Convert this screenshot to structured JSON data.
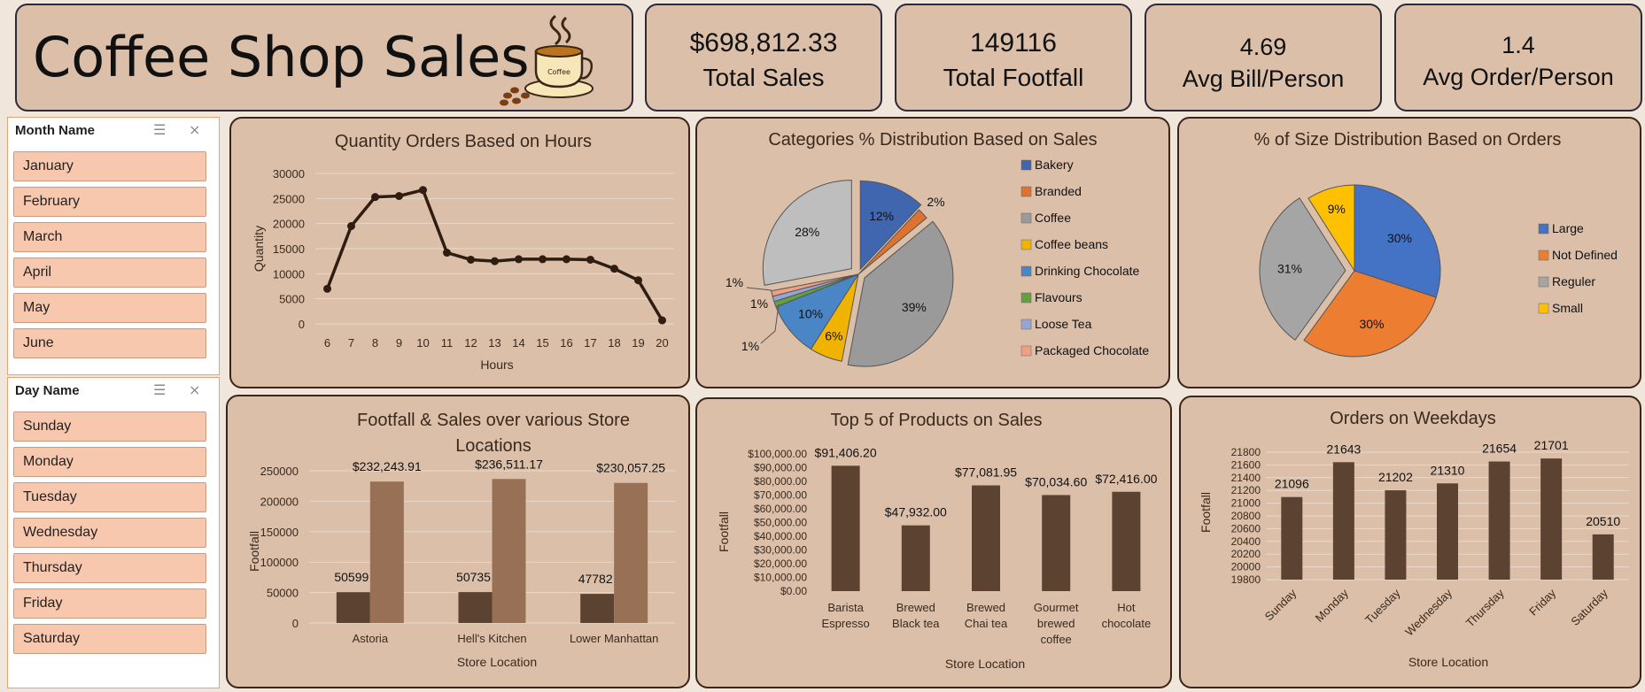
{
  "header": {
    "title": "Coffee Shop Sales"
  },
  "kpis": [
    {
      "value": "$698,812.33",
      "label": "Total Sales"
    },
    {
      "value": "149116",
      "label": "Total Footfall"
    },
    {
      "value": "4.69",
      "label": "Avg Bill/Person"
    },
    {
      "value": "1.4",
      "label": "Avg Order/Person"
    }
  ],
  "slicers": {
    "month": {
      "title": "Month Name",
      "items": [
        "January",
        "February",
        "March",
        "April",
        "May",
        "June"
      ]
    },
    "day": {
      "title": "Day Name",
      "items": [
        "Sunday",
        "Monday",
        "Tuesday",
        "Wednesday",
        "Thursday",
        "Friday",
        "Saturday"
      ]
    }
  },
  "colors": {
    "dark_brown": "#5c4331",
    "light_brown": "#977056",
    "line": "#2e1d10",
    "panel": "#dbbfa9"
  },
  "chart_data": [
    {
      "id": "hours",
      "type": "line",
      "title": "Quantity Orders Based on Hours",
      "xlabel": "Hours",
      "ylabel": "Quantity",
      "ylim": [
        0,
        30000
      ],
      "yticks": [
        "0",
        "5000",
        "10000",
        "15000",
        "20000",
        "25000",
        "30000"
      ],
      "x": [
        "6",
        "7",
        "8",
        "9",
        "10",
        "11",
        "12",
        "13",
        "14",
        "15",
        "16",
        "17",
        "18",
        "19",
        "20"
      ],
      "values": [
        7000,
        19500,
        25300,
        25500,
        26700,
        14200,
        12800,
        12500,
        12900,
        12900,
        12900,
        12800,
        11000,
        8700,
        700
      ]
    },
    {
      "id": "categories",
      "type": "pie",
      "title": "Categories % Distribution Based on Sales",
      "legend": "right",
      "slices": [
        {
          "label": "Bakery",
          "value": 12,
          "text": "12%",
          "color": "#4066b0"
        },
        {
          "label": "Branded",
          "value": 2,
          "text": "2%",
          "color": "#e07230"
        },
        {
          "label": "Coffee",
          "value": 39,
          "text": "39%",
          "color": "#9a9a9a"
        },
        {
          "label": "Coffee beans",
          "value": 6,
          "text": "6%",
          "color": "#f0b400"
        },
        {
          "label": "Drinking Chocolate",
          "value": 10,
          "text": "10%",
          "color": "#4a86c6"
        },
        {
          "label": "Flavours",
          "value": 1,
          "text": "1%",
          "color": "#62a040"
        },
        {
          "label": "Loose Tea",
          "value": 1,
          "text": "1%",
          "color": "#94a6d8"
        },
        {
          "label": "Packaged Chocolate",
          "value": 1,
          "text": "1%",
          "color": "#f0a080"
        },
        {
          "label": "",
          "value": 28,
          "text": "28%",
          "color": "#bebebe"
        }
      ]
    },
    {
      "id": "size",
      "type": "pie",
      "title": "% of Size Distribution Based on Orders",
      "legend": "right",
      "slices": [
        {
          "label": "Large",
          "value": 30,
          "text": "30%",
          "color": "#4472c4"
        },
        {
          "label": "Not Defined",
          "value": 30,
          "text": "30%",
          "color": "#ed7d31"
        },
        {
          "label": "Reguler",
          "value": 31,
          "text": "31%",
          "color": "#a5a5a5"
        },
        {
          "label": "Small",
          "value": 9,
          "text": "9%",
          "color": "#ffc000"
        }
      ]
    },
    {
      "id": "stores",
      "type": "bar",
      "title": "Footfall & Sales over various Store Locations",
      "title_lines": [
        "Footfall & Sales over various Store",
        "Locations"
      ],
      "xlabel": "Store Location",
      "ylabel": "Footfall",
      "ylim": [
        0,
        250000
      ],
      "yticks": [
        "0",
        "50000",
        "100000",
        "150000",
        "200000",
        "250000"
      ],
      "categories": [
        "Astoria",
        "Hell's Kitchen",
        "Lower Manhattan"
      ],
      "series": [
        {
          "values": [
            50599,
            50735,
            47782
          ],
          "labels": [
            "50599",
            "50735",
            "47782"
          ]
        },
        {
          "values": [
            232243.91,
            236511.17,
            230057.25
          ],
          "labels": [
            "$232,243.91",
            "$236,511.17",
            "$230,057.25"
          ]
        }
      ]
    },
    {
      "id": "products",
      "type": "bar",
      "title": "Top 5 of Products on Sales",
      "xlabel": "Store Location",
      "ylabel": "Footfall",
      "ylim": [
        0,
        100000
      ],
      "yticks": [
        "$0.00",
        "$10,000.00",
        "$20,000.00",
        "$30,000.00",
        "$40,000.00",
        "$50,000.00",
        "$60,000.00",
        "$70,000.00",
        "$80,000.00",
        "$90,000.00",
        "$100,000.00"
      ],
      "categories": [
        [
          "Barista",
          "Espresso"
        ],
        [
          "Brewed",
          "Black tea"
        ],
        [
          "Brewed",
          "Chai tea"
        ],
        [
          "Gourmet",
          "brewed",
          "coffee"
        ],
        [
          "Hot",
          "chocolate"
        ]
      ],
      "values": [
        91406.2,
        47932.0,
        77081.95,
        70034.6,
        72416.0
      ],
      "labels": [
        "$91,406.20",
        "$47,932.00",
        "$77,081.95",
        "$70,034.60",
        "$72,416.00"
      ]
    },
    {
      "id": "weekdays",
      "type": "bar",
      "title": "Orders on Weekdays",
      "xlabel": "Store Location",
      "ylabel": "Footfall",
      "ylim": [
        19800,
        21800
      ],
      "yticks": [
        "19800",
        "20000",
        "20200",
        "20400",
        "20600",
        "20800",
        "21000",
        "21200",
        "21400",
        "21600",
        "21800"
      ],
      "categories": [
        "Sunday",
        "Monday",
        "Tuesday",
        "Wednesday",
        "Thursday",
        "Friday",
        "Saturday"
      ],
      "values": [
        21096,
        21643,
        21202,
        21310,
        21654,
        21701,
        20510
      ],
      "labels": [
        "21096",
        "21643",
        "21202",
        "21310",
        "21654",
        "21701",
        "20510"
      ]
    }
  ]
}
